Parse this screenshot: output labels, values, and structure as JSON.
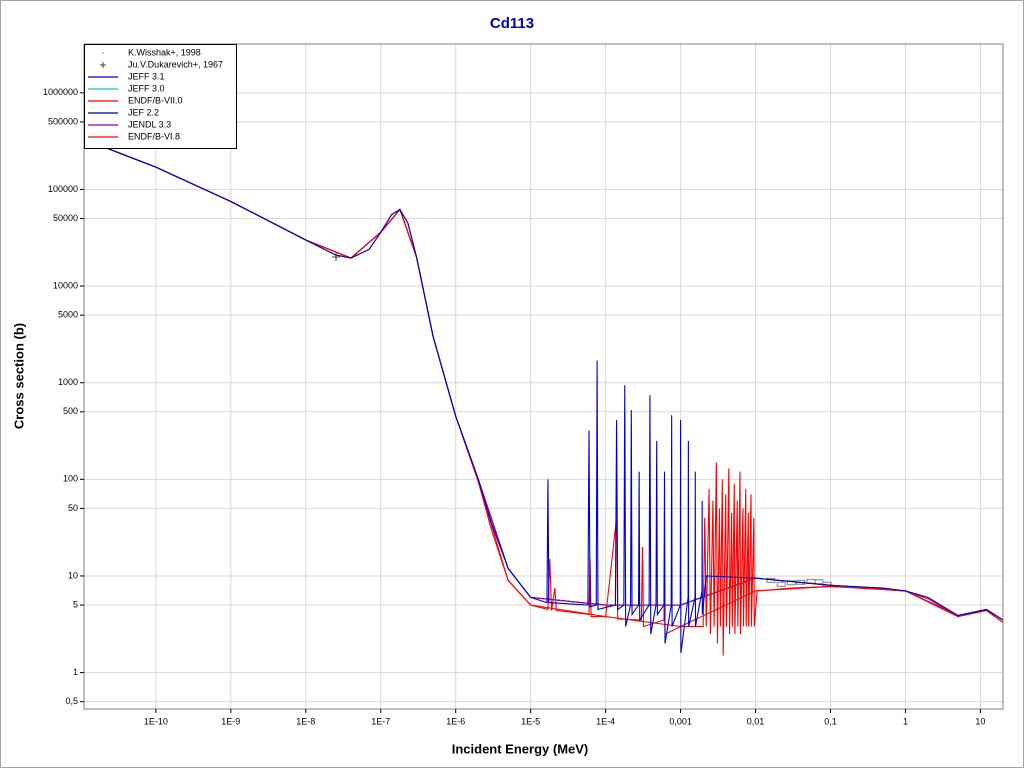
{
  "chart_data": {
    "type": "line",
    "title": "Cd113",
    "xlabel": "Incident Energy (MeV)",
    "ylabel": "Cross section (b)",
    "xscale": "log",
    "yscale": "log",
    "grid": true,
    "legend": "upper left",
    "xlim": [
      1.1e-11,
      20
    ],
    "ylim": [
      0.42,
      3200000
    ],
    "xticks": [
      {
        "value": 1e-10,
        "label": "1E-10"
      },
      {
        "value": 1e-09,
        "label": "1E-9"
      },
      {
        "value": 1e-08,
        "label": "1E-8"
      },
      {
        "value": 1e-07,
        "label": "1E-7"
      },
      {
        "value": 1e-06,
        "label": "1E-6"
      },
      {
        "value": 1e-05,
        "label": "1E-5"
      },
      {
        "value": 0.0001,
        "label": "1E-4"
      },
      {
        "value": 0.001,
        "label": "0,001"
      },
      {
        "value": 0.01,
        "label": "0,01"
      },
      {
        "value": 0.1,
        "label": "0,1"
      },
      1,
      10
    ],
    "yticks": [
      {
        "value": 0.5,
        "label": "0,5"
      },
      1,
      5,
      10,
      50,
      100,
      500,
      1000,
      5000,
      10000,
      50000,
      100000,
      500000,
      1000000
    ],
    "series": [
      {
        "name": "K.Wisshak+, 1998",
        "type": "scatter",
        "marker": "box",
        "color": "#808080",
        "x": [
          0.016,
          0.022,
          0.03,
          0.04,
          0.055,
          0.07,
          0.09
        ],
        "values": [
          9,
          8.2,
          8.5,
          8.6,
          8.8,
          8.7,
          8.2
        ]
      },
      {
        "name": "Ju.V.Dukarevich+, 1967",
        "type": "scatter",
        "marker": "plus",
        "color": "#404040",
        "x": [
          2.53e-08
        ],
        "values": [
          20000
        ]
      },
      {
        "name": "JEFF 3.1",
        "color": "#0000cc",
        "x": [
          1.1e-11,
          1e-10,
          1e-09,
          1e-08,
          2.5e-08,
          4e-08,
          7e-08,
          1e-07,
          1.4e-07,
          1.8e-07,
          2.3e-07,
          3e-07,
          5e-07,
          1e-06,
          2e-06,
          3e-06,
          5e-06,
          1e-05,
          1.65e-05,
          1.7e-05,
          1.75e-05,
          5.8e-05,
          6e-05,
          6.2e-05,
          7.5e-05,
          7.7e-05,
          7.9e-05,
          0.000135,
          0.00014,
          0.000145,
          0.000175,
          0.00018,
          0.000185,
          0.000215,
          0.00022,
          0.000225,
          0.000275,
          0.00028,
          0.000285,
          0.00038,
          0.00039,
          0.0004,
          0.00047,
          0.00048,
          0.00049,
          0.0006,
          0.00061,
          0.00062,
          0.00075,
          0.00076,
          0.00077,
          0.00099,
          0.001,
          0.00101,
          0.00126,
          0.00127,
          0.00128,
          0.00156,
          0.00157,
          0.00158,
          0.00193,
          0.00194,
          0.00195,
          0.0022,
          0.01,
          0.1,
          0.5,
          1,
          2,
          5,
          12,
          20
        ],
        "values": [
          330000,
          170000,
          75000,
          30000,
          21000,
          19500,
          24000,
          36000,
          55000,
          62000,
          45000,
          20000,
          3000,
          450,
          100,
          35,
          12,
          6,
          5.3,
          100,
          5.3,
          5,
          320,
          4.8,
          5,
          1700,
          4.5,
          5,
          410,
          4.5,
          5,
          940,
          3,
          5,
          520,
          4,
          5,
          120,
          3.5,
          5,
          740,
          2.5,
          5,
          250,
          4,
          5,
          120,
          2,
          5,
          460,
          3,
          5,
          410,
          1.6,
          6,
          250,
          3,
          6,
          120,
          3,
          7,
          60,
          4,
          10,
          9.5,
          8,
          7.5,
          7,
          6,
          3.9,
          4.5,
          3.5
        ]
      },
      {
        "name": "JEFF 3.0",
        "color": "#00cccc",
        "x": [
          1.1e-11,
          1e-10,
          1e-09,
          1e-08,
          4e-08,
          1e-07,
          1.8e-07,
          3e-07,
          5e-07,
          1e-06,
          2e-06,
          5e-06,
          1e-05,
          0.0001,
          0.001,
          0.01,
          0.1,
          1,
          5,
          12,
          20
        ],
        "values": [
          330000,
          170000,
          75000,
          30000,
          19500,
          36000,
          62000,
          20000,
          3000,
          450,
          100,
          12,
          6,
          5,
          5,
          9.5,
          8,
          7,
          3.9,
          4.5,
          3.5
        ]
      },
      {
        "name": "ENDF/B-VII.0",
        "color": "#ff0000",
        "x": [
          1.1e-11,
          1e-10,
          1e-09,
          1e-08,
          2.5e-08,
          4e-08,
          7e-08,
          1e-07,
          1.4e-07,
          1.8e-07,
          2.3e-07,
          3e-07,
          5e-07,
          1e-06,
          2e-06,
          3e-06,
          5e-06,
          1e-05,
          1.7e-05,
          1.8e-05,
          1.9e-05,
          2.1e-05,
          2.2e-05,
          6e-05,
          6.2e-05,
          6.4e-05,
          0.0001,
          0.00014,
          0.000145,
          0.0003,
          0.00031,
          0.00032,
          0.0006,
          0.00061,
          0.00062,
          0.001,
          0.002,
          0.0021,
          0.0022,
          0.0024,
          0.0025,
          0.0027,
          0.0028,
          0.003,
          0.0031,
          0.0033,
          0.0034,
          0.0036,
          0.0037,
          0.004,
          0.0041,
          0.0044,
          0.0045,
          0.0048,
          0.0049,
          0.0052,
          0.0053,
          0.0057,
          0.0058,
          0.0062,
          0.0063,
          0.0068,
          0.0069,
          0.0074,
          0.0075,
          0.008,
          0.0081,
          0.0087,
          0.0088,
          0.0095,
          0.0096,
          0.0105,
          0.03,
          0.1,
          0.3,
          1,
          2,
          5,
          12,
          20
        ],
        "values": [
          330000,
          170000,
          75000,
          30000,
          21000,
          19500,
          24000,
          36000,
          55000,
          62000,
          45000,
          20000,
          3000,
          450,
          95,
          30,
          9,
          5,
          4.5,
          15,
          4.4,
          7.5,
          4.4,
          4,
          15,
          3.8,
          3.8,
          40,
          3.6,
          3.5,
          20,
          3,
          3.5,
          15,
          2.5,
          3,
          3,
          40,
          3,
          80,
          2.5,
          60,
          3,
          150,
          2,
          50,
          3,
          100,
          1.5,
          70,
          3,
          130,
          2.5,
          45,
          3,
          90,
          2.5,
          60,
          3,
          120,
          2.5,
          50,
          3,
          80,
          3,
          45,
          3,
          70,
          3,
          40,
          3,
          7,
          7.5,
          7.8,
          7.6,
          7,
          5.8,
          3.8,
          4.4,
          3.3
        ]
      },
      {
        "name": "JEF 2.2",
        "color": "#000080",
        "x": [
          1.1e-11,
          1e-10,
          1e-09,
          1e-08,
          4e-08,
          1e-07,
          1.8e-07,
          3e-07,
          5e-07,
          1e-06,
          2e-06,
          5e-06,
          1e-05,
          0.0001,
          0.001,
          0.01,
          0.1,
          1,
          5,
          12,
          20
        ],
        "values": [
          330000,
          170000,
          75000,
          30000,
          19500,
          36000,
          62000,
          20000,
          3000,
          450,
          100,
          12,
          6,
          5,
          5,
          9.5,
          8,
          7,
          3.9,
          4.5,
          3.5
        ]
      },
      {
        "name": "JENDL 3.3",
        "color": "#990099",
        "x": [
          1.1e-11,
          1e-10,
          1e-09,
          1e-08,
          4e-08,
          1e-07,
          1.8e-07,
          3e-07,
          5e-07,
          1e-06,
          2e-06,
          5e-06,
          1e-05,
          0.0001,
          0.001,
          0.01,
          0.1,
          1,
          5,
          12,
          20
        ],
        "values": [
          330000,
          170000,
          75000,
          30000,
          19500,
          36000,
          62000,
          20000,
          3000,
          450,
          100,
          12,
          6,
          5,
          5,
          9.5,
          8,
          7,
          3.9,
          4.5,
          3.5
        ]
      },
      {
        "name": "ENDF/B-VI.8",
        "color": "#ff0000",
        "x": [
          1.1e-11,
          1e-10,
          1e-09,
          1e-08,
          4e-08,
          1e-07,
          1.8e-07,
          3e-07,
          5e-07,
          1e-06,
          2e-06,
          5e-06,
          1e-05,
          0.0001,
          0.001,
          0.01,
          0.1,
          1,
          5,
          12,
          20
        ],
        "values": [
          330000,
          170000,
          75000,
          30000,
          19500,
          36000,
          62000,
          20000,
          3000,
          450,
          95,
          9,
          5,
          3.8,
          3,
          7,
          7.8,
          7,
          3.8,
          4.4,
          3.3
        ]
      }
    ]
  }
}
